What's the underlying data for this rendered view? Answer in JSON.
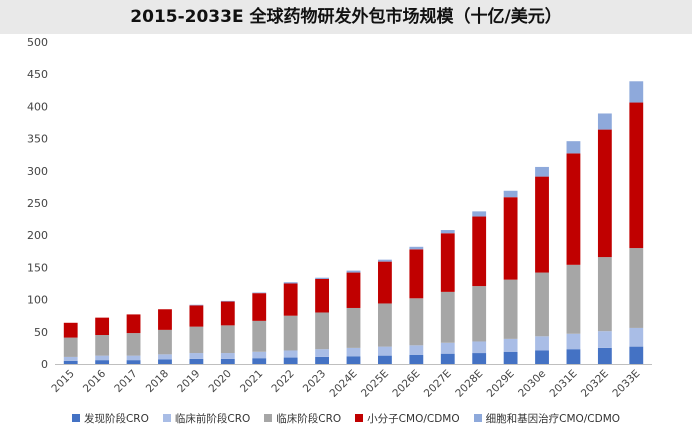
{
  "title": "2015-2033E 全球药物研发外包市场规模（十亿/美元）",
  "chart_data": {
    "type": "bar",
    "stacked": true,
    "categories": [
      "2015",
      "2016",
      "2017",
      "2018",
      "2019",
      "2020",
      "2021",
      "2022",
      "2023",
      "2024E",
      "2025E",
      "2026E",
      "2027E",
      "2028E",
      "2029E",
      "2030e",
      "2031E",
      "2032E",
      "2033E"
    ],
    "ylim": [
      0,
      500
    ],
    "yticks": [
      0,
      50,
      100,
      150,
      200,
      250,
      300,
      350,
      400,
      450,
      500
    ],
    "grid": false,
    "legend_position": "bottom",
    "series": [
      {
        "name": "发现阶段CRO",
        "color": "#4472c4",
        "values": [
          5,
          6,
          6,
          7,
          8,
          8,
          9,
          10,
          11,
          12,
          13,
          14,
          16,
          17,
          19,
          21,
          23,
          25,
          27
        ]
      },
      {
        "name": "临床前阶段CRO",
        "color": "#a9bde6",
        "values": [
          6,
          7,
          7,
          8,
          9,
          9,
          10,
          11,
          12,
          13,
          14,
          15,
          17,
          18,
          20,
          22,
          24,
          26,
          29
        ]
      },
      {
        "name": "临床阶段CRO",
        "color": "#a6a6a6",
        "values": [
          30,
          32,
          35,
          38,
          41,
          43,
          48,
          54,
          57,
          62,
          67,
          73,
          79,
          86,
          92,
          99,
          107,
          115,
          124
        ]
      },
      {
        "name": "小分子CMO/CDMO",
        "color": "#c00000",
        "values": [
          23,
          27,
          29,
          32,
          33,
          37,
          43,
          50,
          52,
          55,
          65,
          76,
          91,
          108,
          128,
          149,
          173,
          198,
          226
        ]
      },
      {
        "name": "细胞和基因治疗CMO/CDMO",
        "color": "#8ea9db",
        "values": [
          0,
          0,
          0,
          0,
          1,
          1,
          1,
          2,
          2,
          3,
          3,
          4,
          5,
          8,
          10,
          15,
          19,
          25,
          33
        ]
      }
    ]
  }
}
